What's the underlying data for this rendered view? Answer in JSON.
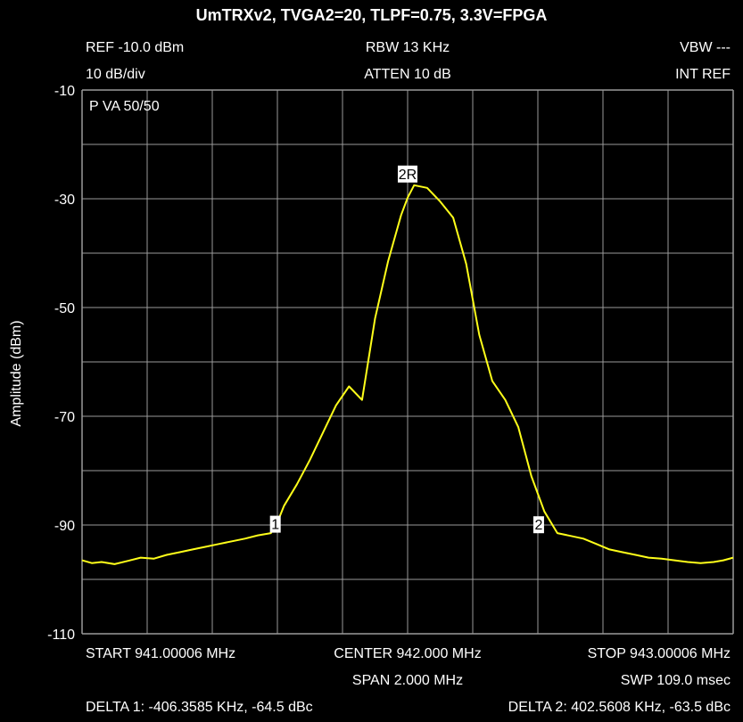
{
  "chart_data": {
    "type": "line",
    "title": "UmTRXv2, TVGA2=20, TLPF=0.75, 3.3V=FPGA",
    "ylabel": "Amplitude (dBm)",
    "xlabel": "",
    "xlim": [
      941.00006,
      943.00006
    ],
    "ylim": [
      -110,
      -10
    ],
    "yticks": [
      "-10",
      "-30",
      "-50",
      "-70",
      "-90",
      "-110"
    ],
    "ytick_values": [
      -10,
      -30,
      -50,
      -70,
      -90,
      -110
    ],
    "grid": true,
    "x_unit": "MHz",
    "series": [
      {
        "color": "#ffff1a",
        "x": [
          941.00006,
          941.03,
          941.06,
          941.1,
          941.14,
          941.18,
          941.22,
          941.26,
          941.3,
          941.34,
          941.38,
          941.42,
          941.46,
          941.5,
          941.54,
          941.58,
          941.6,
          941.62,
          941.66,
          941.7,
          941.74,
          941.78,
          941.82,
          941.86,
          941.9,
          941.94,
          941.98,
          942.0,
          942.02,
          942.06,
          942.1,
          942.14,
          942.18,
          942.22,
          942.26,
          942.3,
          942.34,
          942.38,
          942.42,
          942.46,
          942.5,
          942.54,
          942.58,
          942.62,
          942.66,
          942.7,
          942.74,
          942.78,
          942.82,
          942.86,
          942.9,
          942.94,
          942.97,
          943.00006
        ],
        "y": [
          -96.5,
          -97.0,
          -96.8,
          -97.2,
          -96.6,
          -96.0,
          -96.2,
          -95.5,
          -95.0,
          -94.5,
          -94.0,
          -93.5,
          -93.0,
          -92.5,
          -91.9,
          -91.5,
          -89.5,
          -86.5,
          -82.5,
          -78.0,
          -73.0,
          -68.0,
          -64.5,
          -67.0,
          -52.0,
          -41.5,
          -33.0,
          -29.8,
          -27.5,
          -28.0,
          -30.5,
          -33.5,
          -42.0,
          -55.0,
          -63.5,
          -67.0,
          -72.0,
          -81.0,
          -87.5,
          -91.5,
          -92.0,
          -92.5,
          -93.5,
          -94.5,
          -95.0,
          -95.5,
          -96.0,
          -96.2,
          -96.5,
          -96.8,
          -97.0,
          -96.8,
          -96.5,
          -96.0
        ]
      }
    ],
    "markers": [
      {
        "label": "1",
        "x": 941.59371,
        "y": -91.9
      },
      {
        "label": "2R",
        "x": 942.0,
        "y": -27.5
      },
      {
        "label": "2",
        "x": 942.40261,
        "y": -92.0
      }
    ],
    "annotations": {
      "ref": "REF -10.0 dBm",
      "scale": "10 dB/div",
      "rbw": "RBW 13 KHz",
      "atten": "ATTEN 10 dB",
      "vbw": "VBW ---",
      "intref": "INT REF",
      "mode": "P  VA 50/50",
      "start": "START 941.00006 MHz",
      "center": "CENTER 942.000 MHz",
      "stop": "STOP 943.00006 MHz",
      "span": "SPAN 2.000 MHz",
      "swp": "SWP 109.0 msec",
      "delta1": "DELTA 1: -406.3585 KHz, -64.5 dBc",
      "delta2": "DELTA 2: 402.5608 KHz, -63.5 dBc"
    }
  }
}
